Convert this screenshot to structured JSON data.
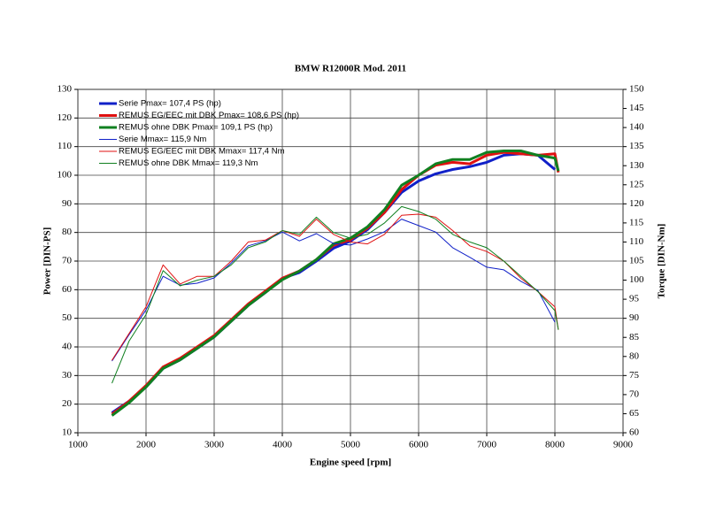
{
  "chart_data": {
    "type": "line",
    "title": "BMW R12000R Mod. 2011",
    "x_label": "Engine speed [rpm]",
    "y_label": "Power [DIN-PS]",
    "y2_label": "Torque [DIN-Nm]",
    "x": [
      1500,
      1750,
      2000,
      2250,
      2500,
      2750,
      3000,
      3250,
      3500,
      3750,
      4000,
      4250,
      4500,
      4750,
      5000,
      5250,
      5500,
      5750,
      6000,
      6250,
      6500,
      6750,
      7000,
      7250,
      7500,
      7750,
      8000,
      8050
    ],
    "xlim": [
      1000,
      9000
    ],
    "xticks": [
      1000,
      2000,
      3000,
      4000,
      5000,
      6000,
      7000,
      8000,
      9000
    ],
    "ylim": [
      10,
      130
    ],
    "yticks": [
      10,
      20,
      30,
      40,
      50,
      60,
      70,
      80,
      90,
      100,
      110,
      120,
      130
    ],
    "y2lim": [
      60,
      150
    ],
    "y2ticks": [
      60,
      65,
      70,
      75,
      80,
      85,
      90,
      95,
      100,
      105,
      110,
      115,
      120,
      125,
      130,
      135,
      140,
      145,
      150
    ],
    "grid": true,
    "legend": "upper left",
    "series": [
      {
        "name": "Serie Pmax= 107,4 PS (hp)",
        "color": "#1020c8",
        "width": 3,
        "values": [
          17,
          21,
          26,
          32.5,
          35.5,
          39.5,
          43.5,
          49,
          54.5,
          59,
          64,
          66,
          70,
          74.5,
          77,
          81,
          87,
          94,
          98,
          100.5,
          102,
          103,
          104.5,
          107,
          107.5,
          107,
          102,
          null
        ]
      },
      {
        "name": "REMUS EG/EEC mit DBK Pmax=  108,6 PS (hp)",
        "color": "#e01010",
        "width": 3,
        "values": [
          16.5,
          21,
          26.5,
          33,
          36,
          40,
          44,
          49.5,
          55,
          59.5,
          64,
          66.5,
          70.5,
          75.5,
          77.5,
          81.5,
          87,
          95,
          100,
          103.5,
          104.5,
          104,
          107,
          108,
          107.5,
          107,
          107.5,
          101
        ]
      },
      {
        "name": "REMUS ohne DBK Pmax= 109,1 PS (hp)",
        "color": "#108020",
        "width": 3,
        "values": [
          16,
          20.5,
          26,
          32.5,
          35.5,
          39.5,
          43.5,
          49,
          54.5,
          59,
          63.5,
          66.5,
          70.5,
          76,
          78,
          82,
          88,
          96.5,
          100,
          104,
          105.5,
          105.5,
          108,
          108.5,
          108.5,
          107,
          106,
          101.5
        ]
      },
      {
        "name": "Serie Mmax= 115,9 Nm",
        "color": "#1020c8",
        "width": 1,
        "axis": "y2",
        "values": [
          78.8,
          85.7,
          92.2,
          101,
          98.7,
          99.2,
          100.6,
          104.5,
          109,
          110.3,
          112.6,
          110.3,
          112.2,
          109.6,
          109.2,
          110.8,
          112.7,
          116,
          114.3,
          112.6,
          108.5,
          106,
          103.4,
          102.7,
          99.7,
          97.3,
          89,
          null
        ]
      },
      {
        "name": "REMUS EG/EEC mit DBK Mmax= 117,4 Nm",
        "color": "#e01010",
        "width": 1,
        "axis": "y2",
        "values": [
          79,
          86,
          93,
          104,
          99,
          101,
          101,
          105,
          110,
          110.5,
          113,
          111.5,
          116,
          112,
          110,
          109.5,
          112,
          117,
          117.3,
          116.5,
          113,
          109,
          107.5,
          105,
          100.5,
          97,
          93,
          87
        ]
      },
      {
        "name": "REMUS ohne DBK Mmax= 119,3 Nm",
        "color": "#108020",
        "width": 1,
        "axis": "y2",
        "values": [
          73,
          84,
          91,
          102.5,
          98.5,
          100,
          101,
          104,
          108.5,
          110,
          113,
          112,
          116.5,
          112.5,
          111,
          112,
          115,
          119.3,
          118,
          116,
          112,
          110,
          108.5,
          105,
          101,
          97,
          92,
          87
        ]
      }
    ]
  }
}
